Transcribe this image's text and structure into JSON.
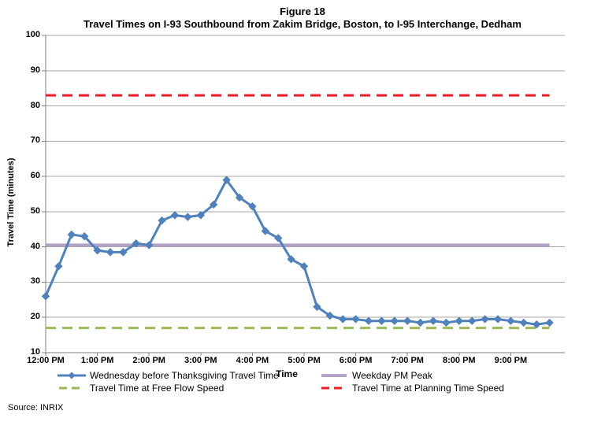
{
  "figure": {
    "title_line1": "Figure 18",
    "title_line2": "Travel Times on I-93 Southbound from Zakim Bridge, Boston, to I-95 Interchange, Dedham",
    "source": "Source: INRIX"
  },
  "chart_data": {
    "type": "line",
    "title": "Travel Times on I-93 Southbound from Zakim Bridge, Boston, to I-95 Interchange, Dedham",
    "xlabel": "Time",
    "ylabel": "Travel Time (minutes)",
    "ylim": [
      10,
      100
    ],
    "y_ticks": [
      100,
      90,
      80,
      70,
      60,
      50,
      40,
      30,
      20,
      10
    ],
    "x_tick_labels": [
      "12:00 PM",
      "1:00 PM",
      "2:00 PM",
      "3:00 PM",
      "4:00 PM",
      "5:00 PM",
      "6:00 PM",
      "7:00 PM",
      "8:00 PM",
      "9:00 PM"
    ],
    "grid": "horizontal",
    "legend_position": "bottom",
    "series": [
      {
        "name": "Wednesday before Thanksgiving Travel Time",
        "color": "#4F81BD",
        "marker": "diamond",
        "x": [
          "12:00 PM",
          "12:15 PM",
          "12:30 PM",
          "12:45 PM",
          "1:00 PM",
          "1:15 PM",
          "1:30 PM",
          "1:45 PM",
          "2:00 PM",
          "2:15 PM",
          "2:30 PM",
          "2:45 PM",
          "3:00 PM",
          "3:15 PM",
          "3:30 PM",
          "3:45 PM",
          "4:00 PM",
          "4:15 PM",
          "4:30 PM",
          "4:45 PM",
          "5:00 PM",
          "5:15 PM",
          "5:30 PM",
          "5:45 PM",
          "6:00 PM",
          "6:15 PM",
          "6:30 PM",
          "6:45 PM",
          "7:00 PM",
          "7:15 PM",
          "7:30 PM",
          "7:45 PM",
          "8:00 PM",
          "8:15 PM",
          "8:30 PM",
          "8:45 PM",
          "9:00 PM",
          "9:15 PM",
          "9:30 PM",
          "9:45 PM"
        ],
        "values": [
          26,
          34.5,
          43.5,
          43,
          39,
          38.5,
          38.5,
          41,
          40.5,
          47.5,
          49,
          48.5,
          49,
          52,
          59,
          54,
          51.5,
          44.5,
          42.5,
          36.5,
          34.5,
          23,
          20.5,
          19.5,
          19.5,
          19,
          19,
          19,
          19,
          18.5,
          19,
          18.5,
          19,
          19,
          19.5,
          19.5,
          19,
          18.5,
          18,
          18.5
        ]
      }
    ],
    "reference_lines": [
      {
        "name": "Weekday PM Peak",
        "value": 40.5,
        "color": "#B3A2C7",
        "dash": "solid"
      },
      {
        "name": "Travel Time at Free Flow Speed",
        "value": 17,
        "color": "#9BBB59",
        "dash": "dashed"
      },
      {
        "name": "Travel Time at Planning Time Speed",
        "value": 83,
        "color": "#ED1C24",
        "dash": "dashed"
      }
    ],
    "colors": {
      "gridline": "#A6A6A6",
      "axis": "#808080"
    }
  }
}
